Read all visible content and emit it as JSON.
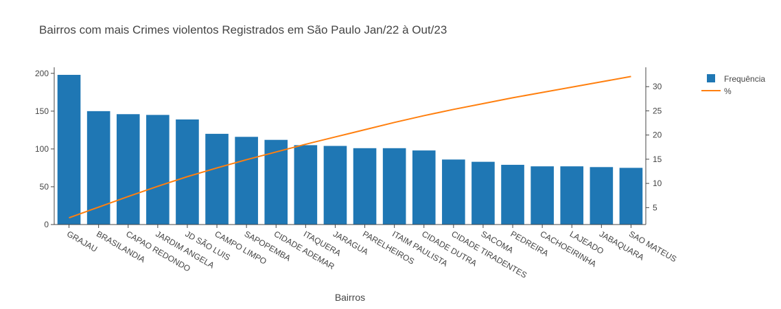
{
  "chart_data": {
    "type": "bar",
    "title": "Bairros com mais Crimes violentos Registrados em São Paulo Jan/22 à Out/23",
    "xlabel": "Bairros",
    "ylabel": "",
    "y2label": "",
    "categories": [
      "GRAJAU",
      "BRASILANDIA",
      "CAPAO REDONDO",
      "JARDIM ANGELA",
      "JD SÃO LUIS",
      "CAMPO LIMPO",
      "SAPOPEMBA",
      "CIDADE ADEMAR",
      "ITAQUERA",
      "JARAGUA",
      "PARELHEIROS",
      "ITAIM PAULISTA",
      "CIDADE DUTRA",
      "CIDADE TIRADENTES",
      "SACOMA",
      "PEDREIRA",
      "CACHOEIRINHA",
      "LAJEADO",
      "JABAQUARA",
      "SAO MATEUS"
    ],
    "series": [
      {
        "name": "Frequência",
        "type": "bar",
        "axis": "y",
        "color": "#1f77b4",
        "values": [
          198,
          150,
          146,
          145,
          139,
          120,
          116,
          112,
          105,
          104,
          101,
          101,
          98,
          86,
          83,
          79,
          77,
          77,
          76,
          75
        ]
      },
      {
        "name": "%",
        "type": "line",
        "axis": "y2",
        "color": "#ff7f0e",
        "values": [
          2.9,
          5.1,
          7.3,
          9.4,
          11.4,
          13.2,
          14.9,
          16.5,
          18.1,
          19.6,
          21.1,
          22.6,
          24.0,
          25.3,
          26.5,
          27.7,
          28.8,
          29.9,
          31.0,
          32.1
        ]
      }
    ],
    "ylim": [
      0,
      208
    ],
    "y2lim": [
      1.5,
      34.0
    ],
    "yticks": [
      0,
      50,
      100,
      150,
      200
    ],
    "y2ticks": [
      5,
      10,
      15,
      20,
      25,
      30
    ],
    "legend_position": "top-right",
    "grid": false
  }
}
